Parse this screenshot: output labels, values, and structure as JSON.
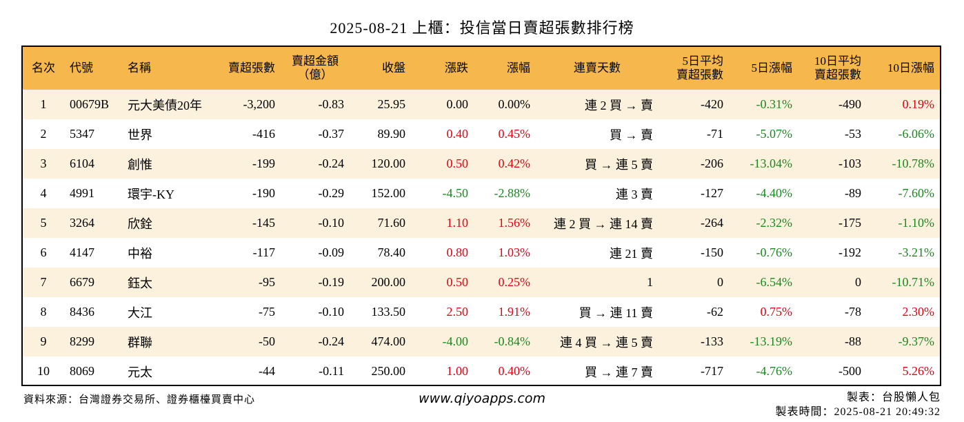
{
  "title": "2025-08-21 上櫃：投信當日賣超張數排行榜",
  "headers": {
    "rank": "名次",
    "code": "代號",
    "name": "名稱",
    "sell_lots": "賣超張數",
    "sell_amount_1": "賣超金額",
    "sell_amount_2": "（億）",
    "close": "收盤",
    "change": "漲跌",
    "change_pct": "漲幅",
    "streak": "連賣天數",
    "avg5_1": "5日平均",
    "avg5_2": "賣超張數",
    "pct5": "5日漲幅",
    "avg10_1": "10日平均",
    "avg10_2": "賣超張數",
    "pct10": "10日漲幅"
  },
  "colors": {
    "header_bg": "#f6b84c",
    "odd_row_bg": "#fbf1dc",
    "up": "#e60012",
    "down": "#178a1e"
  },
  "rows": [
    {
      "rank": "1",
      "code": "00679B",
      "name": "元大美債20年",
      "sell_lots": "-3,200",
      "sell_amount": "-0.83",
      "close": "25.95",
      "change": "0.00",
      "change_color": "black",
      "change_pct": "0.00%",
      "change_pct_color": "black",
      "streak": "連 2 買 → 賣",
      "avg5": "-420",
      "pct5": "-0.31%",
      "pct5_color": "green",
      "avg10": "-490",
      "pct10": "0.19%",
      "pct10_color": "red"
    },
    {
      "rank": "2",
      "code": "5347",
      "name": "世界",
      "sell_lots": "-416",
      "sell_amount": "-0.37",
      "close": "89.90",
      "change": "0.40",
      "change_color": "red",
      "change_pct": "0.45%",
      "change_pct_color": "red",
      "streak": "買 → 賣",
      "avg5": "-71",
      "pct5": "-5.07%",
      "pct5_color": "green",
      "avg10": "-53",
      "pct10": "-6.06%",
      "pct10_color": "green"
    },
    {
      "rank": "3",
      "code": "6104",
      "name": "創惟",
      "sell_lots": "-199",
      "sell_amount": "-0.24",
      "close": "120.00",
      "change": "0.50",
      "change_color": "red",
      "change_pct": "0.42%",
      "change_pct_color": "red",
      "streak": "買 → 連 5 賣",
      "avg5": "-206",
      "pct5": "-13.04%",
      "pct5_color": "green",
      "avg10": "-103",
      "pct10": "-10.78%",
      "pct10_color": "green"
    },
    {
      "rank": "4",
      "code": "4991",
      "name": "環宇-KY",
      "sell_lots": "-190",
      "sell_amount": "-0.29",
      "close": "152.00",
      "change": "-4.50",
      "change_color": "green",
      "change_pct": "-2.88%",
      "change_pct_color": "green",
      "streak": "連 3 賣",
      "avg5": "-127",
      "pct5": "-4.40%",
      "pct5_color": "green",
      "avg10": "-89",
      "pct10": "-7.60%",
      "pct10_color": "green"
    },
    {
      "rank": "5",
      "code": "3264",
      "name": "欣銓",
      "sell_lots": "-145",
      "sell_amount": "-0.10",
      "close": "71.60",
      "change": "1.10",
      "change_color": "red",
      "change_pct": "1.56%",
      "change_pct_color": "red",
      "streak": "連 2 買 → 連 14 賣",
      "avg5": "-264",
      "pct5": "-2.32%",
      "pct5_color": "green",
      "avg10": "-175",
      "pct10": "-1.10%",
      "pct10_color": "green"
    },
    {
      "rank": "6",
      "code": "4147",
      "name": "中裕",
      "sell_lots": "-117",
      "sell_amount": "-0.09",
      "close": "78.40",
      "change": "0.80",
      "change_color": "red",
      "change_pct": "1.03%",
      "change_pct_color": "red",
      "streak": "連 21 賣",
      "avg5": "-150",
      "pct5": "-0.76%",
      "pct5_color": "green",
      "avg10": "-192",
      "pct10": "-3.21%",
      "pct10_color": "green"
    },
    {
      "rank": "7",
      "code": "6679",
      "name": "鈺太",
      "sell_lots": "-95",
      "sell_amount": "-0.19",
      "close": "200.00",
      "change": "0.50",
      "change_color": "red",
      "change_pct": "0.25%",
      "change_pct_color": "red",
      "streak": "1",
      "avg5": "0",
      "pct5": "-6.54%",
      "pct5_color": "green",
      "avg10": "0",
      "pct10": "-10.71%",
      "pct10_color": "green"
    },
    {
      "rank": "8",
      "code": "8436",
      "name": "大江",
      "sell_lots": "-75",
      "sell_amount": "-0.10",
      "close": "133.50",
      "change": "2.50",
      "change_color": "red",
      "change_pct": "1.91%",
      "change_pct_color": "red",
      "streak": "買 → 連 11 賣",
      "avg5": "-62",
      "pct5": "0.75%",
      "pct5_color": "red",
      "avg10": "-78",
      "pct10": "2.30%",
      "pct10_color": "red"
    },
    {
      "rank": "9",
      "code": "8299",
      "name": "群聯",
      "sell_lots": "-50",
      "sell_amount": "-0.24",
      "close": "474.00",
      "change": "-4.00",
      "change_color": "green",
      "change_pct": "-0.84%",
      "change_pct_color": "green",
      "streak": "連 4 買 → 連 5 賣",
      "avg5": "-133",
      "pct5": "-13.19%",
      "pct5_color": "green",
      "avg10": "-88",
      "pct10": "-9.37%",
      "pct10_color": "green"
    },
    {
      "rank": "10",
      "code": "8069",
      "name": "元太",
      "sell_lots": "-44",
      "sell_amount": "-0.11",
      "close": "250.00",
      "change": "1.00",
      "change_color": "red",
      "change_pct": "0.40%",
      "change_pct_color": "red",
      "streak": "買 → 連 7 賣",
      "avg5": "-717",
      "pct5": "-4.76%",
      "pct5_color": "green",
      "avg10": "-500",
      "pct10": "5.26%",
      "pct10_color": "red"
    }
  ],
  "footer": {
    "source": "資料來源：台灣證券交易所、證券櫃檯買賣中心",
    "website": "www.qiyoapps.com",
    "maker": "製表：台股懶人包",
    "made_time": "製表時間：2025-08-21 20:49:32"
  }
}
